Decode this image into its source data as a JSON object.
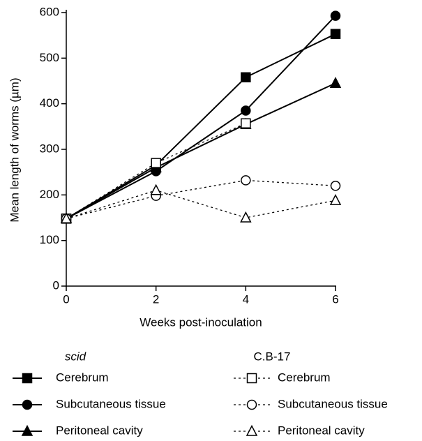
{
  "chart_data": {
    "type": "line",
    "xlabel": "Weeks post-inoculation",
    "ylabel": "Mean length of worms (µm)",
    "x": [
      0,
      2,
      4,
      6
    ],
    "xlim": [
      0,
      6
    ],
    "xticks": [
      0,
      2,
      4,
      6
    ],
    "ylim": [
      0,
      600
    ],
    "yticks": [
      0,
      100,
      200,
      300,
      400,
      500,
      600
    ],
    "legend_groups": [
      "scid",
      "C.B-17"
    ],
    "series": [
      {
        "name": "Cerebrum",
        "color": "#000000",
        "group": 0,
        "marker": "square",
        "filled": true,
        "dashed": false,
        "values": [
          148,
          265,
          458,
          553
        ]
      },
      {
        "name": "Subcutaneous tissue",
        "color": "#000000",
        "group": 0,
        "marker": "circle",
        "filled": true,
        "dashed": false,
        "values": [
          148,
          252,
          385,
          593
        ]
      },
      {
        "name": "Peritoneal cavity",
        "color": "#000000",
        "group": 0,
        "marker": "triangle",
        "filled": true,
        "dashed": false,
        "values": [
          148,
          260,
          355,
          445
        ]
      },
      {
        "name": "Cerebrum",
        "color": "#000000",
        "group": 1,
        "marker": "square",
        "filled": false,
        "dashed": true,
        "values": [
          148,
          270,
          357,
          null
        ]
      },
      {
        "name": "Subcutaneous tissue",
        "color": "#000000",
        "group": 1,
        "marker": "circle",
        "filled": false,
        "dashed": true,
        "values": [
          148,
          198,
          232,
          220
        ]
      },
      {
        "name": "Peritoneal cavity",
        "color": "#000000",
        "group": 1,
        "marker": "triangle",
        "filled": false,
        "dashed": true,
        "values": [
          148,
          210,
          150,
          188
        ]
      }
    ]
  }
}
